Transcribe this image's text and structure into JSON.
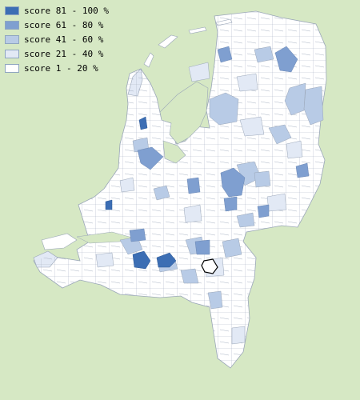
{
  "map": {
    "colors": {
      "background": "#d6e8c4",
      "water": "#d6e8c4",
      "border": "#aab4c4",
      "outline": "#9aa6b8",
      "selected_fill": "#ffffff",
      "selected_border": "#000000"
    },
    "legend": [
      {
        "label": "score 81 - 100 %",
        "color": "#3c6eb4"
      },
      {
        "label": "score 61 - 80 %",
        "color": "#7f9fd0"
      },
      {
        "label": "score 41 - 60 %",
        "color": "#b8cbe6"
      },
      {
        "label": "score 21 - 40 %",
        "color": "#e2e9f5"
      },
      {
        "label": "score 1 - 20 %",
        "color": "#ffffff"
      }
    ]
  }
}
